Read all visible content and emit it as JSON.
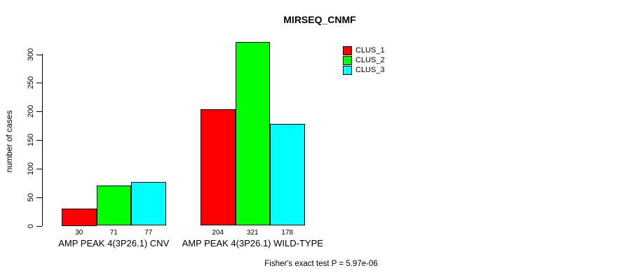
{
  "title": "MIRSEQ_CNMF",
  "annotation": "Fisher's exact test P = 5.97e-06",
  "chart_data": {
    "type": "bar",
    "title": "MIRSEQ_CNMF",
    "xlabel": "",
    "ylabel": "number of cases",
    "ylim": [
      0,
      300
    ],
    "yticks": [
      0,
      50,
      100,
      150,
      200,
      250,
      300
    ],
    "grid": false,
    "bar_value_labels": true,
    "legend_position": "top-right-inside",
    "categories": [
      "AMP PEAK  4(3P26.1) CNV",
      "AMP PEAK  4(3P26.1) WILD-TYPE"
    ],
    "series": [
      {
        "name": "CLUS_1",
        "color": "#FF0000",
        "values": [
          30,
          204
        ]
      },
      {
        "name": "CLUS_2",
        "color": "#00FF00",
        "values": [
          71,
          321
        ]
      },
      {
        "name": "CLUS_3",
        "color": "#00FFFF",
        "values": [
          77,
          178
        ]
      }
    ],
    "annotation": "Fisher's exact test P = 5.97e-06"
  }
}
